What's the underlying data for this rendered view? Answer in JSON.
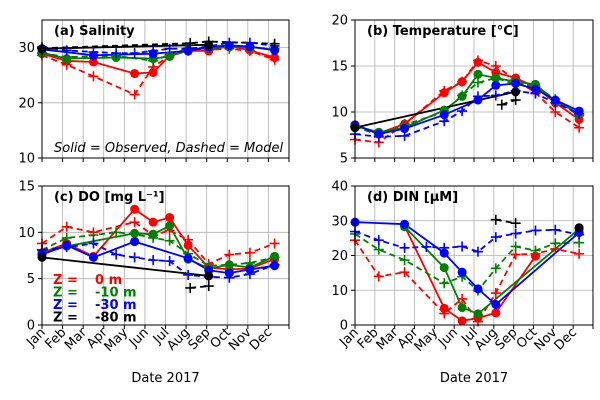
{
  "figure": {
    "note": "Solid = Observed, Dashed = Model",
    "depth_legend": [
      {
        "prefix": "Z =",
        "value": "0 m",
        "color": "#ff0000"
      },
      {
        "prefix": "Z =",
        "value": "-10 m",
        "color": "#008000"
      },
      {
        "prefix": "Z =",
        "value": "-30 m",
        "color": "#0000ff"
      },
      {
        "prefix": "Z =",
        "value": "-80 m",
        "color": "#000000"
      }
    ]
  },
  "chart_data": [
    {
      "id": "salinity",
      "type": "line",
      "title": "(a) Salinity",
      "xlabel": "",
      "ylabel": "",
      "xlim": [
        1,
        13
      ],
      "ylim": [
        10,
        35
      ],
      "yticks": [
        10,
        20,
        30
      ],
      "xticks": [],
      "grid": true,
      "series": [
        {
          "depth": "0 m",
          "kind": "observed",
          "color": "#ff0000",
          "x": [
            1,
            2.2,
            3.5,
            5.5,
            6.4,
            7.2,
            8.1,
            9.1,
            10.1,
            11.1,
            12.3
          ],
          "y": [
            28.9,
            27.6,
            27.4,
            25.3,
            25.5,
            28.5,
            29.4,
            29.4,
            30.3,
            29.5,
            28.2
          ]
        },
        {
          "depth": "0 m",
          "kind": "model",
          "color": "#ff0000",
          "x": [
            1,
            2.2,
            3.5,
            5.5,
            6.4,
            7.2,
            8.1,
            9.1,
            10.1,
            11.1,
            12.3
          ],
          "y": [
            28.6,
            26.9,
            24.8,
            21.5,
            26.5,
            28.5,
            29.4,
            29.6,
            29.8,
            29.4,
            27.8
          ]
        },
        {
          "depth": "-10 m",
          "kind": "observed",
          "color": "#008000",
          "x": [
            1,
            2.2,
            4.6,
            6.4,
            7.2,
            8.1,
            9.1,
            10.1,
            11.1,
            12.3
          ],
          "y": [
            29.1,
            28.0,
            28.2,
            28.0,
            28.4,
            29.6,
            29.9,
            30.1,
            30.1,
            29.6
          ]
        },
        {
          "depth": "-10 m",
          "kind": "model",
          "color": "#008000",
          "x": [
            1,
            2.2,
            4.6,
            6.4,
            7.2,
            8.1,
            9.1,
            10.1,
            11.1,
            12.3
          ],
          "y": [
            29.0,
            28.3,
            28.5,
            27.6,
            28.7,
            29.9,
            30.0,
            30.2,
            30.0,
            29.8
          ]
        },
        {
          "depth": "-30 m",
          "kind": "observed",
          "color": "#0000ff",
          "x": [
            1,
            3.5,
            6.4,
            8.1,
            9.1,
            10.1,
            11.1,
            12.3
          ],
          "y": [
            29.7,
            28.6,
            28.9,
            29.4,
            30.1,
            30.4,
            30.2,
            29.5
          ]
        },
        {
          "depth": "-30 m",
          "kind": "model",
          "color": "#0000ff",
          "x": [
            1,
            2.2,
            3.5,
            4.6,
            5.5,
            6.4,
            7.2,
            8.1,
            9.1,
            10.1,
            11.1,
            12.3
          ],
          "y": [
            30.1,
            29.5,
            29.2,
            29.0,
            29.0,
            29.4,
            29.8,
            29.8,
            30.2,
            30.9,
            30.9,
            30.3
          ]
        },
        {
          "depth": "-80 m",
          "kind": "observed",
          "color": "#000000",
          "x": [
            1,
            9.1
          ],
          "y": [
            29.8,
            30.5
          ]
        },
        {
          "depth": "-80 m",
          "kind": "model",
          "color": "#000000",
          "x": [
            1,
            8.2,
            9.1,
            12.3
          ],
          "y": [
            29.9,
            30.8,
            31.1,
            30.7
          ]
        }
      ]
    },
    {
      "id": "temperature",
      "type": "line",
      "title": "(b) Temperature [°C]",
      "xlabel": "",
      "ylabel": "",
      "xlim": [
        1,
        13
      ],
      "ylim": [
        5,
        20
      ],
      "yticks": [
        5,
        10,
        15,
        20
      ],
      "xticks": [],
      "grid": true,
      "series": [
        {
          "depth": "0 m",
          "kind": "observed",
          "color": "#ff0000",
          "x": [
            1,
            2.2,
            3.5,
            5.5,
            6.4,
            7.2,
            8.1,
            9.1,
            10.1,
            11.1,
            12.3
          ],
          "y": [
            8.6,
            7.7,
            8.7,
            12.1,
            13.3,
            15.4,
            14.3,
            13.7,
            12.7,
            11.0,
            9.2
          ]
        },
        {
          "depth": "0 m",
          "kind": "model",
          "color": "#ff0000",
          "x": [
            1,
            2.2,
            3.5,
            5.5,
            6.4,
            7.2,
            8.1,
            9.1,
            10.1,
            11.1,
            12.3
          ],
          "y": [
            7.0,
            6.7,
            8.7,
            12.3,
            13.3,
            15.6,
            15.0,
            13.5,
            12.1,
            10.0,
            8.3
          ]
        },
        {
          "depth": "-10 m",
          "kind": "observed",
          "color": "#008000",
          "x": [
            1,
            2.2,
            3.5,
            5.5,
            6.4,
            7.2,
            8.1,
            9.1,
            10.1,
            11.1,
            12.3
          ],
          "y": [
            8.5,
            7.8,
            8.3,
            10.2,
            11.7,
            14.1,
            13.7,
            13.3,
            13.0,
            11.2,
            9.8
          ]
        },
        {
          "depth": "-10 m",
          "kind": "model",
          "color": "#008000",
          "x": [
            1,
            2.2,
            3.5,
            5.5,
            6.4,
            7.2,
            8.1,
            9.1,
            10.1,
            11.1,
            12.3
          ],
          "y": [
            8.4,
            7.5,
            8.6,
            10.0,
            11.8,
            13.2,
            13.7,
            13.0,
            12.8,
            11.4,
            9.6
          ]
        },
        {
          "depth": "-30 m",
          "kind": "observed",
          "color": "#0000ff",
          "x": [
            1,
            2.2,
            3.5,
            5.5,
            7.2,
            8.1,
            9.1,
            10.1,
            11.1,
            12.3
          ],
          "y": [
            8.6,
            7.6,
            8.2,
            9.7,
            11.3,
            12.9,
            13.1,
            12.5,
            11.3,
            10.1
          ]
        },
        {
          "depth": "-30 m",
          "kind": "model",
          "color": "#0000ff",
          "x": [
            1,
            2.2,
            3.5,
            5.5,
            6.4,
            7.2,
            8.1,
            9.1,
            10.1,
            11.1,
            12.3
          ],
          "y": [
            7.6,
            7.3,
            7.4,
            9.0,
            10.1,
            11.7,
            11.8,
            12.3,
            12.0,
            11.0,
            9.8
          ]
        },
        {
          "depth": "-80 m",
          "kind": "observed",
          "color": "#000000",
          "x": [
            1,
            9.1
          ],
          "y": [
            8.3,
            12.2
          ]
        },
        {
          "depth": "-80 m",
          "kind": "model",
          "color": "#000000",
          "x": [
            8.4,
            9.1
          ],
          "y": [
            10.8,
            11.3
          ]
        }
      ]
    },
    {
      "id": "do",
      "type": "line",
      "title": "(c) DO [mg L⁻¹]",
      "xlabel": "Date 2017",
      "ylabel": "",
      "xlim": [
        1,
        13
      ],
      "ylim": [
        0,
        15
      ],
      "yticks": [
        0,
        5,
        10,
        15
      ],
      "xticks": [
        "Jan",
        "Feb",
        "Mar",
        "Apr",
        "May",
        "Jun",
        "Jul",
        "Aug",
        "Sep",
        "Oct",
        "Nov",
        "Dec"
      ],
      "grid": true,
      "series": [
        {
          "depth": "0 m",
          "kind": "observed",
          "color": "#ff0000",
          "x": [
            1,
            2.2,
            3.5,
            5.5,
            6.4,
            7.2,
            8.1,
            9.1,
            10.1,
            11.1,
            12.3
          ],
          "y": [
            7.8,
            8.8,
            7.4,
            12.5,
            11.1,
            11.6,
            8.6,
            6.2,
            6.0,
            6.1,
            7.1
          ]
        },
        {
          "depth": "0 m",
          "kind": "model",
          "color": "#ff0000",
          "x": [
            1,
            2.2,
            3.5,
            5.5,
            6.4,
            7.2,
            8.1,
            9.1,
            10.1,
            11.1,
            12.3
          ],
          "y": [
            8.8,
            10.6,
            10.0,
            11.1,
            9.7,
            10.2,
            9.2,
            6.6,
            7.6,
            7.8,
            8.8
          ]
        },
        {
          "depth": "-10 m",
          "kind": "observed",
          "color": "#008000",
          "x": [
            1,
            2.2,
            5.5,
            6.4,
            7.2,
            8.1,
            9.1,
            10.1,
            11.1,
            12.3
          ],
          "y": [
            7.7,
            8.5,
            9.9,
            9.8,
            10.7,
            7.1,
            6.1,
            6.5,
            6.2,
            7.4
          ]
        },
        {
          "depth": "-10 m",
          "kind": "model",
          "color": "#008000",
          "x": [
            1,
            2.2,
            3.5,
            4.6,
            5.5,
            6.4,
            7.2,
            8.1,
            9.1,
            10.1,
            11.1,
            12.3
          ],
          "y": [
            8.1,
            9.4,
            9.7,
            10.0,
            9.8,
            9.4,
            9.1,
            7.7,
            6.4,
            6.5,
            6.7,
            7.3
          ]
        },
        {
          "depth": "-30 m",
          "kind": "observed",
          "color": "#0000ff",
          "x": [
            1,
            2.2,
            3.5,
            5.5,
            8.1,
            9.1,
            10.1,
            11.1,
            12.3
          ],
          "y": [
            7.6,
            8.6,
            7.3,
            9.0,
            7.2,
            5.9,
            5.6,
            6.0,
            6.4
          ]
        },
        {
          "depth": "-30 m",
          "kind": "model",
          "color": "#0000ff",
          "x": [
            1,
            2.2,
            3.5,
            4.6,
            5.5,
            6.4,
            7.2,
            8.1,
            9.1,
            10.1,
            11.1,
            12.3
          ],
          "y": [
            8.1,
            8.4,
            8.8,
            7.6,
            7.3,
            7.0,
            6.9,
            5.4,
            5.2,
            5.1,
            5.5,
            6.5
          ]
        },
        {
          "depth": "-80 m",
          "kind": "observed",
          "color": "#000000",
          "x": [
            1,
            9.1
          ],
          "y": [
            7.3,
            5.3
          ]
        },
        {
          "depth": "-80 m",
          "kind": "model",
          "color": "#000000",
          "x": [
            8.2,
            9.1
          ],
          "y": [
            4.0,
            4.2
          ]
        }
      ]
    },
    {
      "id": "din",
      "type": "line",
      "title": "(d) DIN [μM]",
      "xlabel": "Date 2017",
      "ylabel": "",
      "xlim": [
        1,
        13
      ],
      "ylim": [
        0,
        40
      ],
      "yticks": [
        0,
        10,
        20,
        30,
        40
      ],
      "xticks": [
        "Jan",
        "Feb",
        "Mar",
        "Apr",
        "May",
        "Jun",
        "Jul",
        "Aug",
        "Sep",
        "Oct",
        "Nov",
        "Dec"
      ],
      "grid": true,
      "series": [
        {
          "depth": "0 m",
          "kind": "observed",
          "color": "#ff0000",
          "x": [
            3.5,
            5.5,
            6.4,
            7.2,
            8.1,
            10.1
          ],
          "y": [
            28.5,
            4.8,
            1.2,
            2.0,
            3.5,
            19.8
          ]
        },
        {
          "depth": "0 m",
          "kind": "model",
          "color": "#ff0000",
          "x": [
            1,
            2.2,
            3.5,
            5.5,
            6.4,
            7.2,
            8.1,
            9.1,
            10.1,
            11.1,
            12.3
          ],
          "y": [
            24.4,
            14.0,
            15.2,
            3.3,
            7.5,
            1.0,
            9.2,
            20.3,
            20.5,
            21.9,
            20.5
          ]
        },
        {
          "depth": "-10 m",
          "kind": "observed",
          "color": "#008000",
          "x": [
            3.5,
            5.5,
            6.4,
            7.2,
            12.3
          ],
          "y": [
            28.3,
            16.5,
            5.0,
            3.2,
            27.6
          ]
        },
        {
          "depth": "-10 m",
          "kind": "model",
          "color": "#008000",
          "x": [
            1,
            2.2,
            3.5,
            5.5,
            6.4,
            7.2,
            8.1,
            9.1,
            10.1,
            11.1,
            12.3
          ],
          "y": [
            26.2,
            21.7,
            18.7,
            12.0,
            13.9,
            9.9,
            16.3,
            22.6,
            21.4,
            23.5,
            23.7
          ]
        },
        {
          "depth": "-30 m",
          "kind": "observed",
          "color": "#0000ff",
          "x": [
            1,
            3.5,
            5.5,
            6.4,
            7.2,
            8.1,
            12.3
          ],
          "y": [
            29.6,
            29.0,
            20.7,
            15.2,
            10.4,
            5.9,
            26.6
          ]
        },
        {
          "depth": "-30 m",
          "kind": "model",
          "color": "#0000ff",
          "x": [
            1,
            2.2,
            3.5,
            4.6,
            5.5,
            6.4,
            7.2,
            8.1,
            9.1,
            10.1,
            11.1,
            12.3
          ],
          "y": [
            26.9,
            24.4,
            22.2,
            22.5,
            22.2,
            22.6,
            21.1,
            25.3,
            26.3,
            27.2,
            27.4,
            26.0
          ]
        },
        {
          "depth": "-80 m",
          "kind": "observed",
          "color": "#000000",
          "x": [
            12.3
          ],
          "y": [
            28.0
          ]
        },
        {
          "depth": "-80 m",
          "kind": "model",
          "color": "#000000",
          "x": [
            8.1,
            9.1
          ],
          "y": [
            30.3,
            29.3
          ]
        }
      ]
    }
  ]
}
